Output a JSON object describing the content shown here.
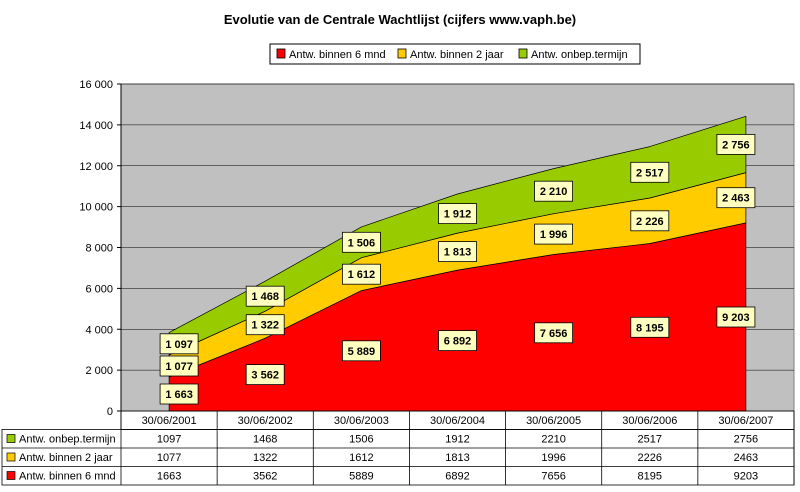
{
  "chart_data": {
    "type": "area",
    "stacked": true,
    "title": "Evolutie van de Centrale Wachtlijst (cijfers www.vaph.be)",
    "categories": [
      "30/06/2001",
      "30/06/2002",
      "30/06/2003",
      "30/06/2004",
      "30/06/2005",
      "30/06/2006",
      "30/06/2007"
    ],
    "ylim": [
      0,
      16000
    ],
    "yticks": [
      0,
      2000,
      4000,
      6000,
      8000,
      10000,
      12000,
      14000,
      16000
    ],
    "ytick_labels": [
      "0",
      "2 000",
      "4 000",
      "6 000",
      "8 000",
      "10 000",
      "12 000",
      "14 000",
      "16 000"
    ],
    "grid": true,
    "legend_position": "top-right",
    "plot_background": "#c0c0c0",
    "series": [
      {
        "name": "Antw. binnen 6 mnd",
        "color": "#ff0000",
        "values": [
          1663,
          3562,
          5889,
          6892,
          7656,
          8195,
          9203
        ],
        "labels": [
          "1 663",
          "3 562",
          "5 889",
          "6 892",
          "7 656",
          "8 195",
          "9 203"
        ]
      },
      {
        "name": "Antw. binnen 2 jaar",
        "color": "#ffcc00",
        "values": [
          1077,
          1322,
          1612,
          1813,
          1996,
          2226,
          2463
        ],
        "labels": [
          "1 077",
          "1 322",
          "1 612",
          "1 813",
          "1 996",
          "2 226",
          "2 463"
        ]
      },
      {
        "name": "Antw. onbep.termijn",
        "color": "#99cc00",
        "values": [
          1097,
          1468,
          1506,
          1912,
          2210,
          2517,
          2756
        ],
        "labels": [
          "1 097",
          "1 468",
          "1 506",
          "1 912",
          "2 210",
          "2 517",
          "2 756"
        ]
      }
    ],
    "table": {
      "rows": [
        {
          "name": "Antw. onbep.termijn",
          "color": "#99cc00",
          "cells": [
            "1097",
            "1468",
            "1506",
            "1912",
            "2210",
            "2517",
            "2756"
          ]
        },
        {
          "name": "Antw. binnen 2 jaar",
          "color": "#ffcc00",
          "cells": [
            "1077",
            "1322",
            "1612",
            "1813",
            "1996",
            "2226",
            "2463"
          ]
        },
        {
          "name": "Antw. binnen 6 mnd",
          "color": "#ff0000",
          "cells": [
            "1663",
            "3562",
            "5889",
            "6892",
            "7656",
            "8195",
            "9203"
          ]
        }
      ]
    }
  }
}
